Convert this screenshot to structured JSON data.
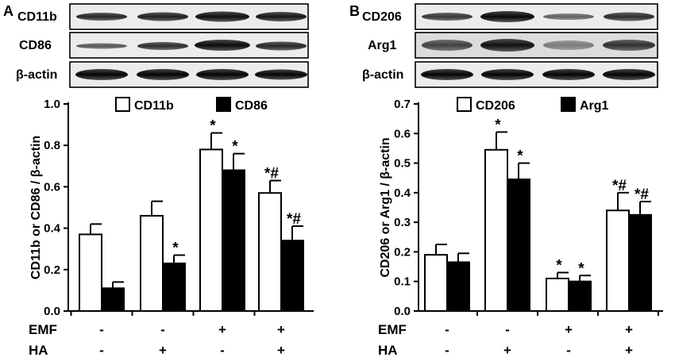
{
  "blots": {
    "A": [
      "CD11b",
      "CD86",
      "β-actin"
    ],
    "B": [
      "CD206",
      "Arg1",
      "β-actin"
    ]
  },
  "conditions": {
    "rows": [
      {
        "label": "EMF",
        "values": [
          "-",
          "-",
          "+",
          "+"
        ]
      },
      {
        "label": "HA",
        "values": [
          "-",
          "+",
          "-",
          "+"
        ]
      }
    ]
  },
  "chart_data": [
    {
      "type": "bar",
      "panel": "A",
      "ylabel": "CD11b  or  CD86 / β-actin",
      "ylim": [
        0,
        1.0
      ],
      "yticks": [
        "0.0",
        "0.2",
        "0.4",
        "0.6",
        "0.8",
        "1.0"
      ],
      "legend_placement": "top-center",
      "series": [
        {
          "name": "CD11b",
          "fill": "#ffffff",
          "values": [
            0.37,
            0.46,
            0.78,
            0.57
          ],
          "errors": [
            0.05,
            0.07,
            0.08,
            0.06
          ],
          "marks": [
            "",
            "",
            "*",
            "*#"
          ]
        },
        {
          "name": "CD86",
          "fill": "#000000",
          "values": [
            0.11,
            0.23,
            0.68,
            0.34
          ],
          "errors": [
            0.03,
            0.04,
            0.08,
            0.07
          ],
          "marks": [
            "",
            "*",
            "*",
            "*#"
          ]
        }
      ]
    },
    {
      "type": "bar",
      "panel": "B",
      "ylabel": "CD206  or  Arg1 / β-actin",
      "ylim": [
        0,
        0.7
      ],
      "yticks": [
        "0.0",
        "0.1",
        "0.2",
        "0.3",
        "0.4",
        "0.5",
        "0.6",
        "0.7"
      ],
      "legend_placement": "top-center",
      "series": [
        {
          "name": "CD206",
          "fill": "#ffffff",
          "values": [
            0.19,
            0.545,
            0.11,
            0.34
          ],
          "errors": [
            0.035,
            0.06,
            0.02,
            0.06
          ],
          "marks": [
            "",
            "*",
            "*",
            "*#"
          ]
        },
        {
          "name": "Arg1",
          "fill": "#000000",
          "values": [
            0.165,
            0.445,
            0.1,
            0.325
          ],
          "errors": [
            0.03,
            0.055,
            0.02,
            0.045
          ],
          "marks": [
            "",
            "*",
            "*",
            "*#"
          ]
        }
      ]
    }
  ]
}
